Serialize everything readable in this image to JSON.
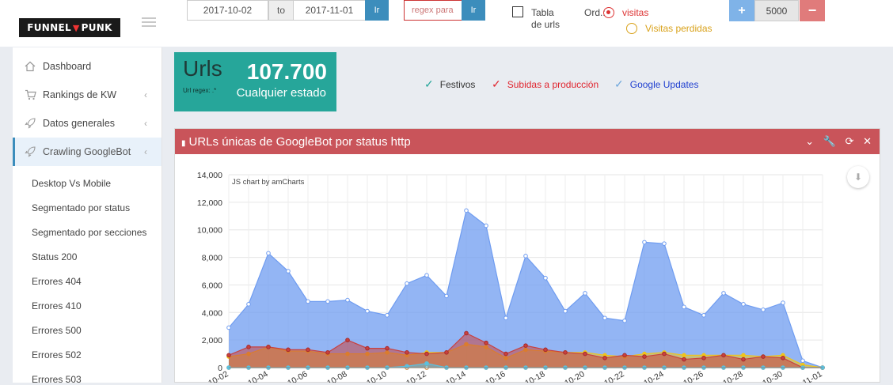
{
  "header": {
    "logo": {
      "left": "FUNNEL",
      "right": "PUNK"
    },
    "date_from": "2017-10-02",
    "date_to_label": "to",
    "date_to": "2017-11-01",
    "go_label": "Ir",
    "regex_placeholder": "regex para",
    "go2_label": "Ir",
    "checkbox_label_1": "Tabla",
    "checkbox_label_2": "de urls",
    "ord_label": "Ord.:",
    "radio_visitas": "visitas",
    "radio_perdidas": "Visitas perdidas",
    "plus_label": "+",
    "stepper_value": "5000",
    "minus_label": "−"
  },
  "sidebar": {
    "items": [
      {
        "label": "Dashboard",
        "icon": "home-icon",
        "chevron": ""
      },
      {
        "label": "Rankings de KW",
        "icon": "cart-icon",
        "chevron": "‹"
      },
      {
        "label": "Datos generales",
        "icon": "rocket-icon",
        "chevron": "‹"
      },
      {
        "label": "Crawling GoogleBot",
        "icon": "rocket-icon",
        "chevron": "‹"
      }
    ],
    "subitems": [
      "Desktop Vs Mobile",
      "Segmentado por status",
      "Segmentado por secciones",
      "Status 200",
      "Errores 404",
      "Errores 410",
      "Errores 500",
      "Errores 502",
      "Errores 503"
    ]
  },
  "summary": {
    "title": "Urls",
    "sub": "Url regex: .*",
    "value": "107.700",
    "caption": "Cualquier estado"
  },
  "legend": {
    "festivos": "Festivos",
    "subidas": "Subidas a producción",
    "updates": "Google Updates"
  },
  "colors": {
    "festivos": "#26a69a",
    "subidas": "#e0242e",
    "updates": "#1f3fd0",
    "panel_header": "#c9545a",
    "summary_box": "#26a69a"
  },
  "panel": {
    "title": "URLs únicas de GoogleBot por status http",
    "tools": "⌄ 🔧 ⟳ ✕",
    "credit": "JS chart by amCharts"
  },
  "chart_data": {
    "type": "area",
    "ylim": [
      0,
      14000
    ],
    "yticks": [
      "0",
      "2,000",
      "4,000",
      "6,000",
      "8,000",
      "10,000",
      "12,000",
      "14,000"
    ],
    "xtick_labels": [
      "10-02",
      "10-04",
      "10-06",
      "10-08",
      "10-10",
      "10-12",
      "10-14",
      "10-16",
      "10-18",
      "10-20",
      "10-22",
      "10-24",
      "10-26",
      "10-28",
      "10-30",
      "11-01"
    ],
    "x": [
      "10-02",
      "10-03",
      "10-04",
      "10-05",
      "10-06",
      "10-07",
      "10-08",
      "10-09",
      "10-10",
      "10-11",
      "10-12",
      "10-13",
      "10-14",
      "10-15",
      "10-16",
      "10-17",
      "10-18",
      "10-19",
      "10-20",
      "10-21",
      "10-22",
      "10-23",
      "10-24",
      "10-25",
      "10-26",
      "10-27",
      "10-28",
      "10-29",
      "10-30",
      "10-31",
      "11-01"
    ],
    "series": [
      {
        "color": "#6f9cf0",
        "values": [
          2900,
          4600,
          8300,
          7000,
          4800,
          4800,
          4900,
          4100,
          3800,
          6100,
          6700,
          5200,
          11400,
          10300,
          3600,
          8100,
          6500,
          4100,
          5400,
          3600,
          3400,
          9100,
          9000,
          4400,
          3800,
          5400,
          4600,
          4200,
          4700,
          500,
          0
        ]
      },
      {
        "color": "#f0c419",
        "values": [
          800,
          1000,
          1500,
          1200,
          1200,
          1000,
          1000,
          1000,
          1100,
          900,
          1100,
          1100,
          1700,
          1500,
          700,
          1300,
          1200,
          1100,
          1100,
          900,
          800,
          1000,
          1100,
          900,
          900,
          900,
          900,
          800,
          900,
          200,
          0
        ]
      },
      {
        "color": "#c8413f",
        "values": [
          900,
          1500,
          1500,
          1300,
          1300,
          1100,
          2000,
          1400,
          1400,
          1100,
          1000,
          1100,
          2500,
          1800,
          1000,
          1600,
          1300,
          1100,
          1000,
          700,
          900,
          800,
          1000,
          600,
          700,
          900,
          600,
          800,
          700,
          0,
          0
        ]
      },
      {
        "color": "#e08a2f",
        "values": [
          0,
          0,
          0,
          0,
          0,
          0,
          0,
          0,
          0,
          0,
          0,
          0,
          0,
          0,
          0,
          0,
          0,
          0,
          0,
          0,
          0,
          0,
          0,
          0,
          0,
          0,
          0,
          0,
          0,
          0,
          0
        ]
      },
      {
        "color": "#5bc0de",
        "values": [
          0,
          0,
          0,
          0,
          0,
          0,
          0,
          0,
          0,
          100,
          300,
          0,
          0,
          0,
          0,
          0,
          0,
          0,
          0,
          0,
          0,
          0,
          0,
          0,
          0,
          0,
          0,
          0,
          0,
          0,
          0
        ]
      }
    ]
  }
}
